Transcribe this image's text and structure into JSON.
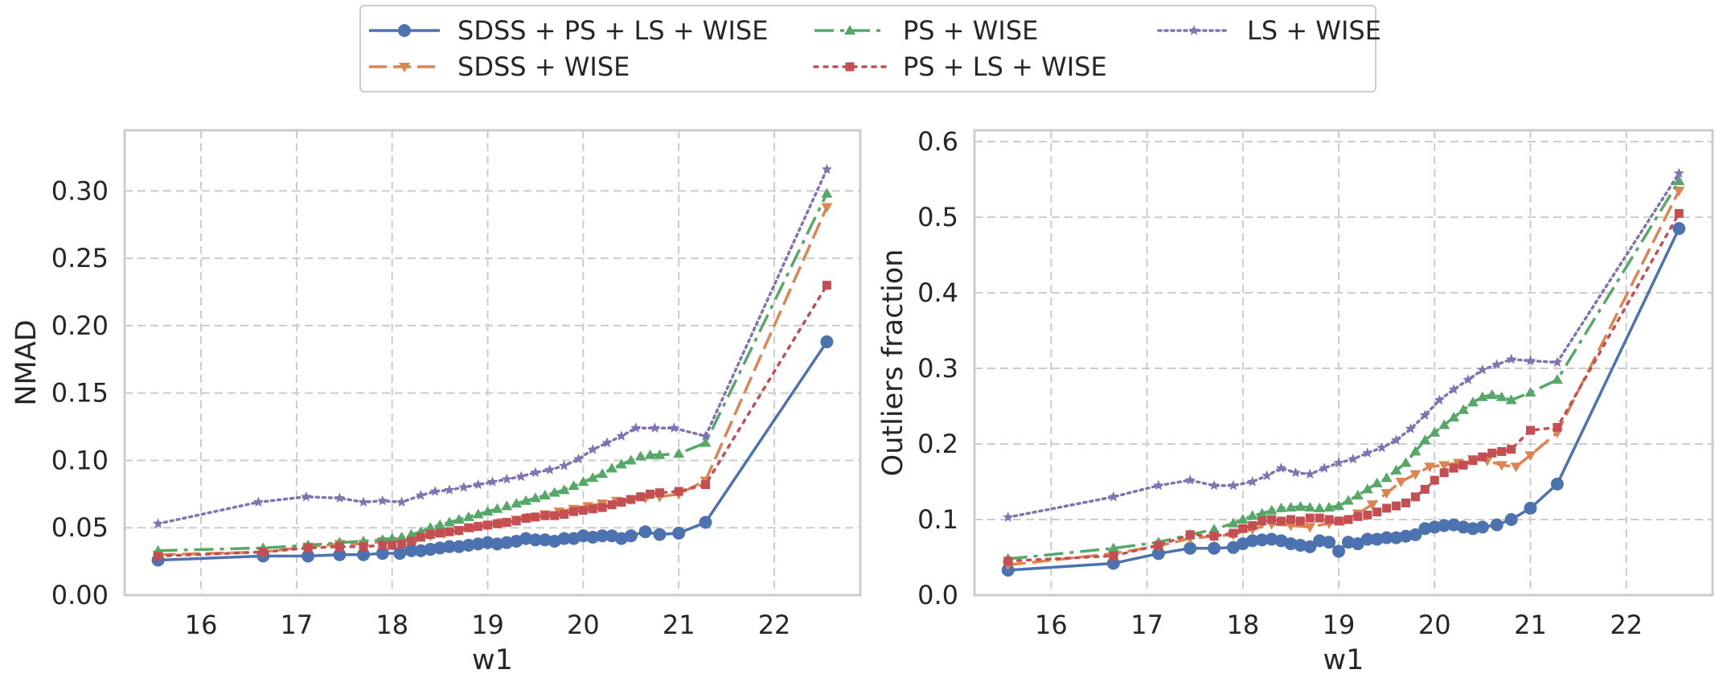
{
  "colors": {
    "background": "#ffffff",
    "axes_frame": "#cccccc",
    "grid": "#cccccc",
    "text": "#262626"
  },
  "legend": {
    "placement": "top-center",
    "columns": 3,
    "items": [
      {
        "series": "SDSS + PS + LS + WISE",
        "label": "SDSS + PS + LS + WISE",
        "color": "#4c72b0",
        "marker": "circle",
        "dash": "solid"
      },
      {
        "series": "SDSS + WISE",
        "label": "SDSS + WISE",
        "color": "#dd8452",
        "marker": "triangle-down",
        "dash": "dashed"
      },
      {
        "series": "PS + WISE",
        "label": "PS + WISE",
        "color": "#55a868",
        "marker": "triangle-up",
        "dash": "dashdot"
      },
      {
        "series": "PS + LS + WISE",
        "label": "PS + LS + WISE",
        "color": "#c44e52",
        "marker": "square",
        "dash": "dotted"
      },
      {
        "series": "LS + WISE",
        "label": "LS + WISE",
        "color": "#8172b3",
        "marker": "star",
        "dash": "dotted-fine"
      }
    ]
  },
  "chart_data": [
    {
      "type": "line",
      "title": "",
      "xlabel": "w1",
      "ylabel": "NMAD",
      "xlim": [
        15.2,
        22.9
      ],
      "ylim": [
        0.0,
        0.345
      ],
      "xticks": [
        16,
        17,
        18,
        19,
        20,
        21,
        22
      ],
      "yticks": [
        0.0,
        0.05,
        0.1,
        0.15,
        0.2,
        0.25,
        0.3
      ],
      "ytick_labels": [
        "0.00",
        "0.05",
        "0.10",
        "0.15",
        "0.20",
        "0.25",
        "0.30"
      ],
      "grid": true,
      "series": [
        {
          "name": "SDSS + PS + LS + WISE",
          "x": [
            15.55,
            16.65,
            17.12,
            17.45,
            17.7,
            17.9,
            18.08,
            18.2,
            18.3,
            18.4,
            18.5,
            18.6,
            18.7,
            18.8,
            18.9,
            19.0,
            19.1,
            19.2,
            19.3,
            19.4,
            19.5,
            19.6,
            19.7,
            19.8,
            19.9,
            20.0,
            20.1,
            20.2,
            20.3,
            20.4,
            20.5,
            20.65,
            20.8,
            21.0,
            21.28,
            22.55
          ],
          "values": [
            0.026,
            0.029,
            0.029,
            0.03,
            0.03,
            0.031,
            0.031,
            0.033,
            0.033,
            0.034,
            0.035,
            0.036,
            0.036,
            0.037,
            0.038,
            0.039,
            0.038,
            0.039,
            0.04,
            0.042,
            0.041,
            0.041,
            0.04,
            0.042,
            0.042,
            0.044,
            0.043,
            0.044,
            0.044,
            0.042,
            0.044,
            0.047,
            0.045,
            0.046,
            0.054,
            0.188
          ]
        },
        {
          "name": "SDSS + WISE",
          "x": [
            15.55,
            16.65,
            17.12,
            17.45,
            17.7,
            17.9,
            18.08,
            18.25,
            18.4,
            18.55,
            18.7,
            18.85,
            19.0,
            19.15,
            19.3,
            19.45,
            19.6,
            19.75,
            19.9,
            20.05,
            20.2,
            20.35,
            20.5,
            20.65,
            20.8,
            21.0,
            21.28,
            22.55
          ],
          "values": [
            0.03,
            0.032,
            0.036,
            0.038,
            0.038,
            0.04,
            0.04,
            0.042,
            0.044,
            0.046,
            0.048,
            0.05,
            0.052,
            0.054,
            0.056,
            0.058,
            0.06,
            0.062,
            0.064,
            0.066,
            0.068,
            0.07,
            0.071,
            0.072,
            0.073,
            0.075,
            0.085,
            0.288
          ]
        },
        {
          "name": "PS + WISE",
          "x": [
            15.55,
            16.65,
            17.12,
            17.45,
            17.7,
            17.9,
            18.0,
            18.1,
            18.2,
            18.3,
            18.4,
            18.5,
            18.6,
            18.7,
            18.8,
            18.9,
            19.0,
            19.1,
            19.2,
            19.3,
            19.4,
            19.5,
            19.6,
            19.7,
            19.8,
            19.9,
            20.0,
            20.1,
            20.2,
            20.3,
            20.4,
            20.5,
            20.6,
            20.7,
            20.8,
            21.0,
            21.28,
            22.55
          ],
          "values": [
            0.033,
            0.035,
            0.037,
            0.039,
            0.04,
            0.041,
            0.042,
            0.043,
            0.045,
            0.047,
            0.05,
            0.052,
            0.054,
            0.056,
            0.058,
            0.06,
            0.062,
            0.064,
            0.066,
            0.068,
            0.07,
            0.072,
            0.074,
            0.076,
            0.078,
            0.081,
            0.084,
            0.087,
            0.09,
            0.094,
            0.097,
            0.1,
            0.103,
            0.104,
            0.104,
            0.105,
            0.113,
            0.298
          ]
        },
        {
          "name": "PS + LS + WISE",
          "x": [
            15.55,
            16.65,
            17.12,
            17.45,
            17.7,
            17.9,
            18.0,
            18.1,
            18.2,
            18.3,
            18.4,
            18.5,
            18.6,
            18.7,
            18.8,
            18.9,
            19.0,
            19.1,
            19.2,
            19.3,
            19.4,
            19.5,
            19.6,
            19.7,
            19.8,
            19.9,
            20.0,
            20.1,
            20.2,
            20.3,
            20.4,
            20.5,
            20.6,
            20.7,
            20.8,
            21.0,
            21.28,
            22.55
          ],
          "values": [
            0.029,
            0.032,
            0.035,
            0.036,
            0.036,
            0.037,
            0.037,
            0.038,
            0.04,
            0.043,
            0.045,
            0.046,
            0.047,
            0.048,
            0.05,
            0.051,
            0.052,
            0.053,
            0.054,
            0.055,
            0.057,
            0.058,
            0.059,
            0.059,
            0.06,
            0.062,
            0.063,
            0.064,
            0.065,
            0.067,
            0.069,
            0.071,
            0.073,
            0.075,
            0.076,
            0.077,
            0.082,
            0.23
          ]
        },
        {
          "name": "LS + WISE",
          "x": [
            15.55,
            16.6,
            17.1,
            17.45,
            17.7,
            17.9,
            18.1,
            18.3,
            18.45,
            18.6,
            18.75,
            18.9,
            19.05,
            19.2,
            19.35,
            19.5,
            19.65,
            19.8,
            19.95,
            20.1,
            20.25,
            20.4,
            20.55,
            20.75,
            20.95,
            21.28,
            22.55
          ],
          "values": [
            0.053,
            0.069,
            0.073,
            0.072,
            0.069,
            0.07,
            0.069,
            0.074,
            0.077,
            0.078,
            0.08,
            0.082,
            0.084,
            0.086,
            0.088,
            0.091,
            0.093,
            0.096,
            0.101,
            0.108,
            0.113,
            0.118,
            0.124,
            0.124,
            0.124,
            0.118,
            0.316
          ]
        }
      ]
    },
    {
      "type": "line",
      "title": "",
      "xlabel": "w1",
      "ylabel": "Outliers fraction",
      "xlim": [
        15.2,
        22.9
      ],
      "ylim": [
        0.0,
        0.615
      ],
      "xticks": [
        16,
        17,
        18,
        19,
        20,
        21,
        22
      ],
      "yticks": [
        0.0,
        0.1,
        0.2,
        0.3,
        0.4,
        0.5,
        0.6
      ],
      "ytick_labels": [
        "0.0",
        "0.1",
        "0.2",
        "0.3",
        "0.4",
        "0.5",
        "0.6"
      ],
      "grid": true,
      "series": [
        {
          "name": "SDSS + PS + LS + WISE",
          "x": [
            15.55,
            16.65,
            17.12,
            17.45,
            17.7,
            17.9,
            18.0,
            18.1,
            18.2,
            18.3,
            18.4,
            18.5,
            18.6,
            18.7,
            18.8,
            18.9,
            19.0,
            19.1,
            19.2,
            19.3,
            19.4,
            19.5,
            19.6,
            19.7,
            19.8,
            19.9,
            20.0,
            20.1,
            20.2,
            20.3,
            20.4,
            20.5,
            20.65,
            20.8,
            21.0,
            21.28,
            22.55
          ],
          "values": [
            0.033,
            0.042,
            0.055,
            0.062,
            0.062,
            0.063,
            0.068,
            0.072,
            0.073,
            0.074,
            0.072,
            0.068,
            0.066,
            0.064,
            0.072,
            0.07,
            0.058,
            0.07,
            0.068,
            0.074,
            0.074,
            0.076,
            0.076,
            0.078,
            0.08,
            0.088,
            0.09,
            0.092,
            0.093,
            0.09,
            0.088,
            0.09,
            0.093,
            0.1,
            0.115,
            0.147,
            0.485
          ]
        },
        {
          "name": "SDSS + WISE",
          "x": [
            15.55,
            16.65,
            17.12,
            17.45,
            17.7,
            17.9,
            18.1,
            18.3,
            18.5,
            18.7,
            18.9,
            19.05,
            19.2,
            19.35,
            19.5,
            19.65,
            19.8,
            19.95,
            20.1,
            20.25,
            20.4,
            20.55,
            20.7,
            20.85,
            21.0,
            21.28,
            22.55
          ],
          "values": [
            0.04,
            0.055,
            0.065,
            0.075,
            0.078,
            0.08,
            0.087,
            0.094,
            0.092,
            0.09,
            0.095,
            0.098,
            0.108,
            0.12,
            0.135,
            0.15,
            0.16,
            0.17,
            0.172,
            0.175,
            0.18,
            0.178,
            0.172,
            0.17,
            0.185,
            0.215,
            0.535
          ]
        },
        {
          "name": "PS + WISE",
          "x": [
            15.55,
            16.65,
            17.12,
            17.45,
            17.7,
            17.9,
            18.0,
            18.1,
            18.2,
            18.3,
            18.4,
            18.5,
            18.6,
            18.7,
            18.8,
            18.9,
            19.0,
            19.1,
            19.2,
            19.3,
            19.4,
            19.5,
            19.6,
            19.7,
            19.8,
            19.9,
            20.0,
            20.1,
            20.2,
            20.3,
            20.4,
            20.5,
            20.6,
            20.7,
            20.8,
            21.0,
            21.28,
            22.55
          ],
          "values": [
            0.048,
            0.062,
            0.07,
            0.08,
            0.087,
            0.095,
            0.1,
            0.105,
            0.108,
            0.112,
            0.115,
            0.116,
            0.117,
            0.116,
            0.115,
            0.116,
            0.118,
            0.125,
            0.132,
            0.14,
            0.148,
            0.155,
            0.165,
            0.175,
            0.19,
            0.205,
            0.215,
            0.225,
            0.235,
            0.245,
            0.255,
            0.262,
            0.265,
            0.262,
            0.258,
            0.268,
            0.285,
            0.548
          ]
        },
        {
          "name": "PS + LS + WISE",
          "x": [
            15.55,
            16.65,
            17.12,
            17.45,
            17.7,
            17.9,
            18.0,
            18.1,
            18.2,
            18.3,
            18.4,
            18.5,
            18.6,
            18.7,
            18.8,
            18.9,
            19.0,
            19.1,
            19.2,
            19.3,
            19.4,
            19.5,
            19.6,
            19.7,
            19.8,
            19.9,
            20.0,
            20.1,
            20.2,
            20.3,
            20.4,
            20.5,
            20.6,
            20.7,
            20.8,
            21.0,
            21.28,
            22.55
          ],
          "values": [
            0.045,
            0.052,
            0.066,
            0.08,
            0.078,
            0.082,
            0.088,
            0.092,
            0.098,
            0.1,
            0.098,
            0.1,
            0.098,
            0.102,
            0.102,
            0.1,
            0.098,
            0.1,
            0.104,
            0.106,
            0.11,
            0.115,
            0.118,
            0.122,
            0.13,
            0.14,
            0.152,
            0.162,
            0.168,
            0.172,
            0.178,
            0.183,
            0.188,
            0.19,
            0.193,
            0.218,
            0.222,
            0.505
          ]
        },
        {
          "name": "LS + WISE",
          "x": [
            15.55,
            16.65,
            17.12,
            17.45,
            17.7,
            17.9,
            18.1,
            18.25,
            18.4,
            18.55,
            18.7,
            18.85,
            19.0,
            19.15,
            19.3,
            19.45,
            19.6,
            19.75,
            19.9,
            20.05,
            20.2,
            20.35,
            20.5,
            20.65,
            20.8,
            21.0,
            21.28,
            22.55
          ],
          "values": [
            0.103,
            0.13,
            0.145,
            0.152,
            0.145,
            0.145,
            0.15,
            0.158,
            0.168,
            0.162,
            0.16,
            0.168,
            0.175,
            0.18,
            0.188,
            0.195,
            0.205,
            0.22,
            0.238,
            0.258,
            0.272,
            0.285,
            0.298,
            0.305,
            0.312,
            0.31,
            0.308,
            0.558
          ]
        }
      ]
    }
  ]
}
